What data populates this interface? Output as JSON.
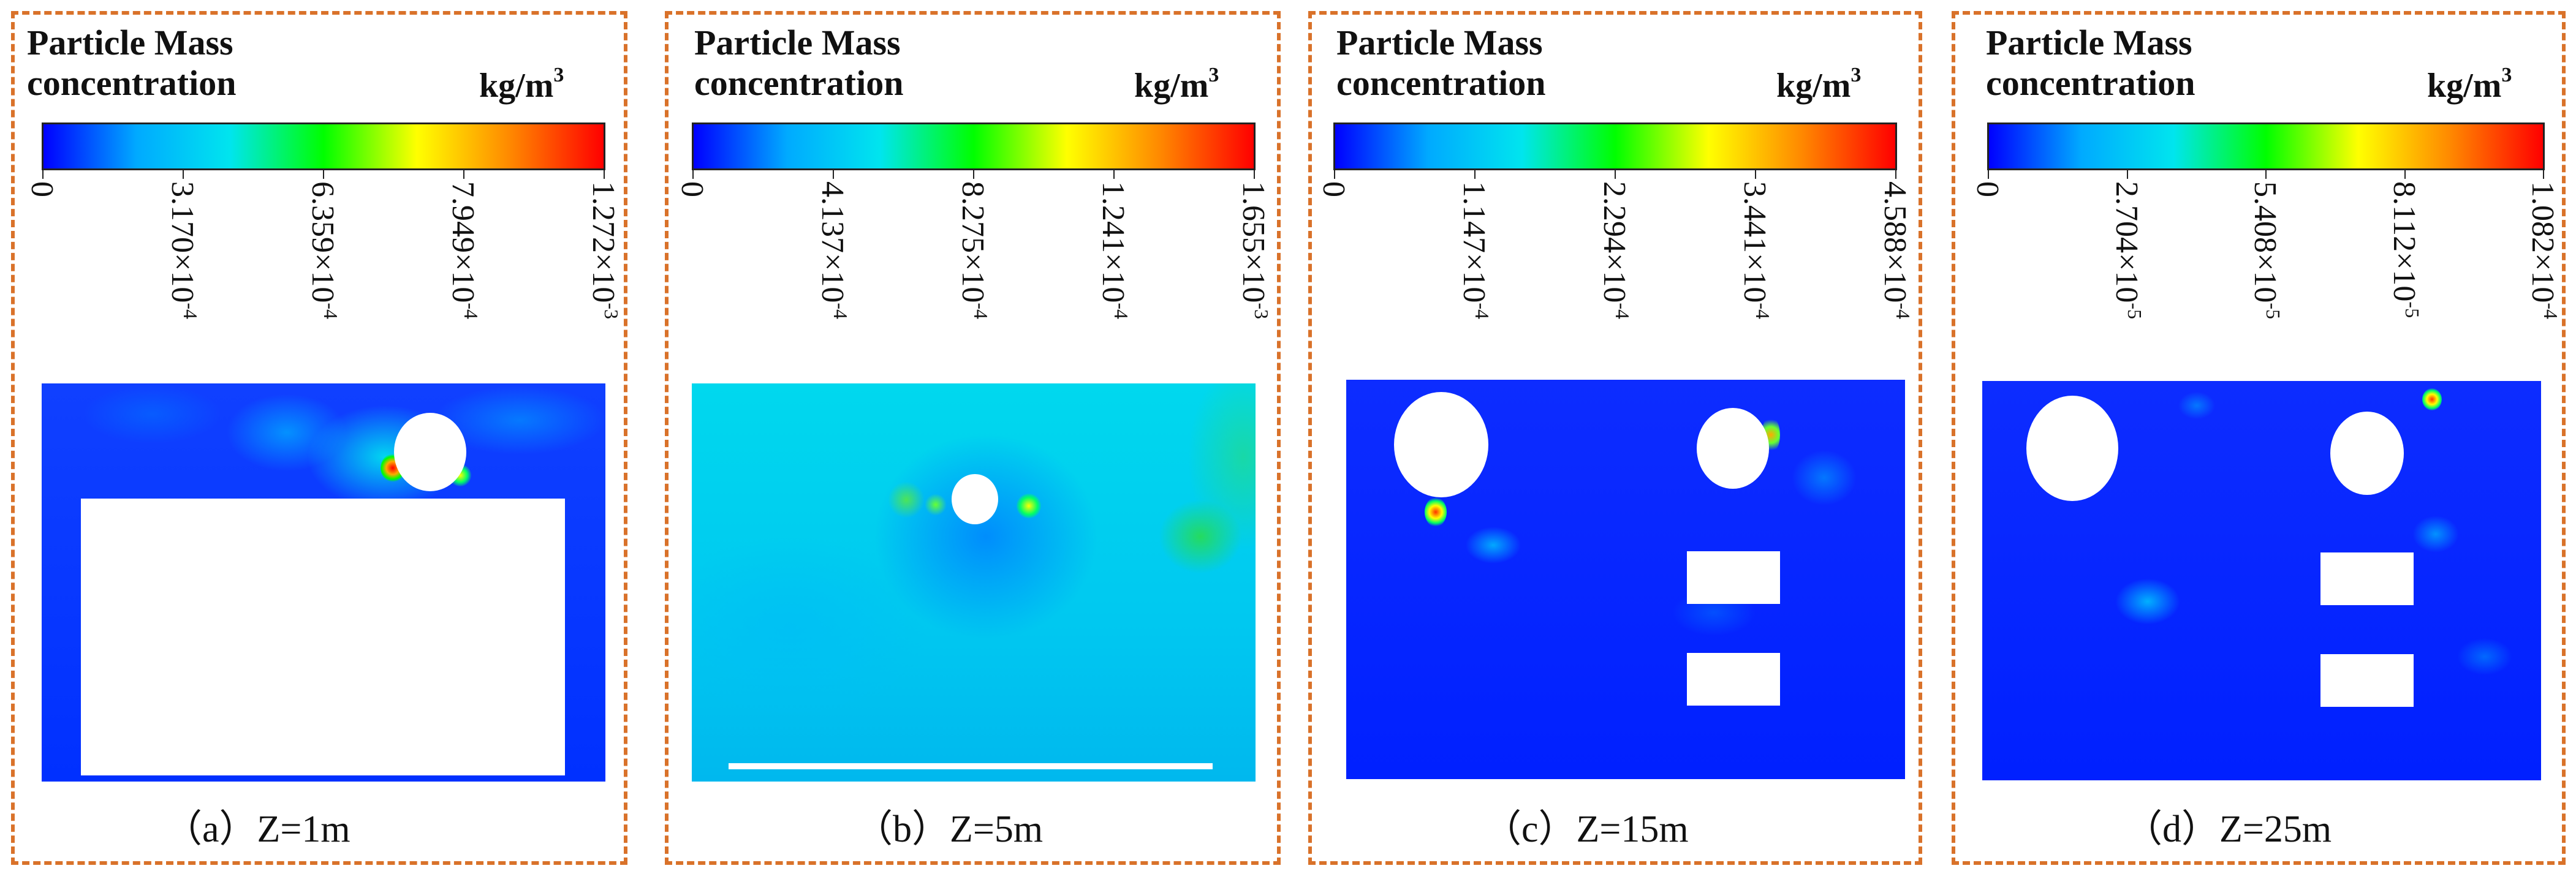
{
  "legend_title_line1": "Particle Mass",
  "legend_title_line2": "concentration",
  "unit": {
    "base": "kg/m",
    "exp": "3"
  },
  "colormap": [
    "#0000ff",
    "#00aaff",
    "#00e5ee",
    "#00ff00",
    "#ffff00",
    "#ff8800",
    "#ff0000"
  ],
  "panels": [
    {
      "caption": "（a）Z=1m",
      "ticks": [
        {
          "m": "0",
          "e": ""
        },
        {
          "m": "3.170×10",
          "e": "-4"
        },
        {
          "m": "6.359×10",
          "e": "-4"
        },
        {
          "m": "7.949×10",
          "e": "-4"
        },
        {
          "m": "1.272×10",
          "e": "-3"
        }
      ]
    },
    {
      "caption": "（b）Z=5m",
      "ticks": [
        {
          "m": "0",
          "e": ""
        },
        {
          "m": "4.137×10",
          "e": "-4"
        },
        {
          "m": "8.275×10",
          "e": "-4"
        },
        {
          "m": "1.241×10",
          "e": "-4"
        },
        {
          "m": "1.655×10",
          "e": "-3"
        }
      ]
    },
    {
      "caption": "（c）Z=15m",
      "ticks": [
        {
          "m": "0",
          "e": ""
        },
        {
          "m": "1.147×10",
          "e": "-4"
        },
        {
          "m": "2.294×10",
          "e": "-4"
        },
        {
          "m": "3.441×10",
          "e": "-4"
        },
        {
          "m": "4.588×10",
          "e": "-4"
        }
      ]
    },
    {
      "caption": "（d）Z=25m",
      "ticks": [
        {
          "m": "0",
          "e": ""
        },
        {
          "m": "2.704×10",
          "e": "-5"
        },
        {
          "m": "5.408×10",
          "e": "-5"
        },
        {
          "m": "8.112×10",
          "e": "-5"
        },
        {
          "m": "1.082×10",
          "e": "-4"
        }
      ]
    }
  ]
}
